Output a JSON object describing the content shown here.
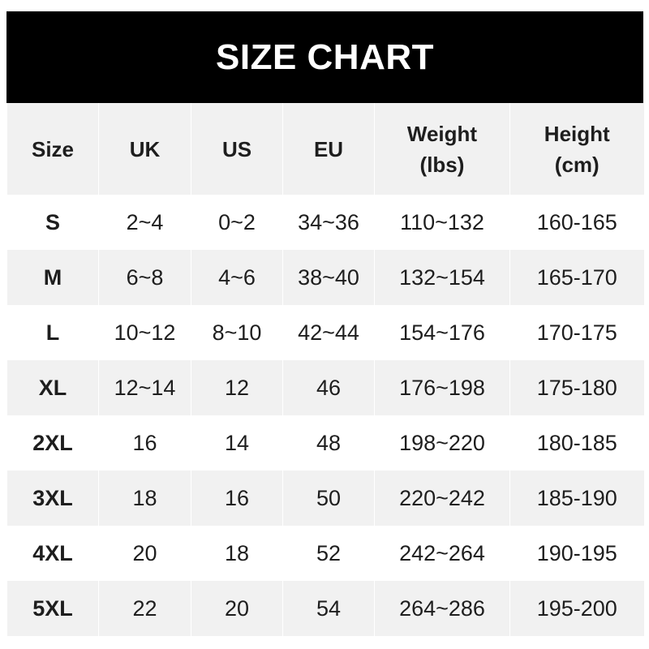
{
  "title": "SIZE CHART",
  "headers": [
    "Size",
    "UK",
    "US",
    "EU",
    "Weight\n(lbs)",
    "Height\n(cm)"
  ],
  "header_lines": [
    [
      "Size"
    ],
    [
      "UK"
    ],
    [
      "US"
    ],
    [
      "EU"
    ],
    [
      "Weight",
      "(lbs)"
    ],
    [
      "Height",
      "(cm)"
    ]
  ],
  "rows": [
    [
      "S",
      "2~4",
      "0~2",
      "34~36",
      "110~132",
      "160-165"
    ],
    [
      "M",
      "6~8",
      "4~6",
      "38~40",
      "132~154",
      "165-170"
    ],
    [
      "L",
      "10~12",
      "8~10",
      "42~44",
      "154~176",
      "170-175"
    ],
    [
      "XL",
      "12~14",
      "12",
      "46",
      "176~198",
      "175-180"
    ],
    [
      "2XL",
      "16",
      "14",
      "48",
      "198~220",
      "180-185"
    ],
    [
      "3XL",
      "18",
      "16",
      "50",
      "220~242",
      "185-190"
    ],
    [
      "4XL",
      "20",
      "18",
      "52",
      "242~264",
      "190-195"
    ],
    [
      "5XL",
      "22",
      "20",
      "54",
      "264~286",
      "195-200"
    ]
  ]
}
